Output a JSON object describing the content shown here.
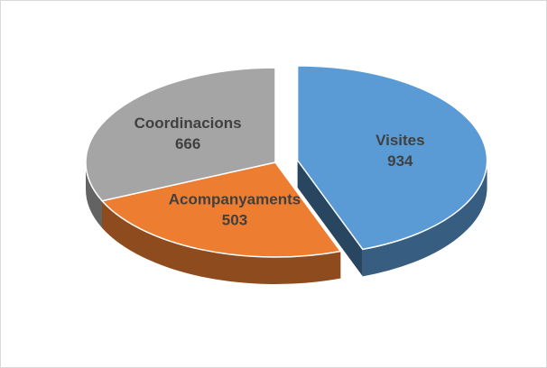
{
  "chart_data": {
    "type": "pie3d",
    "categories": [
      "Visites",
      "Acompanyaments",
      "Coordinacions"
    ],
    "values": [
      934,
      503,
      666
    ],
    "colors": [
      "#5b9bd5",
      "#ed7d31",
      "#a5a5a5"
    ],
    "exploded": [
      true,
      false,
      false
    ]
  }
}
